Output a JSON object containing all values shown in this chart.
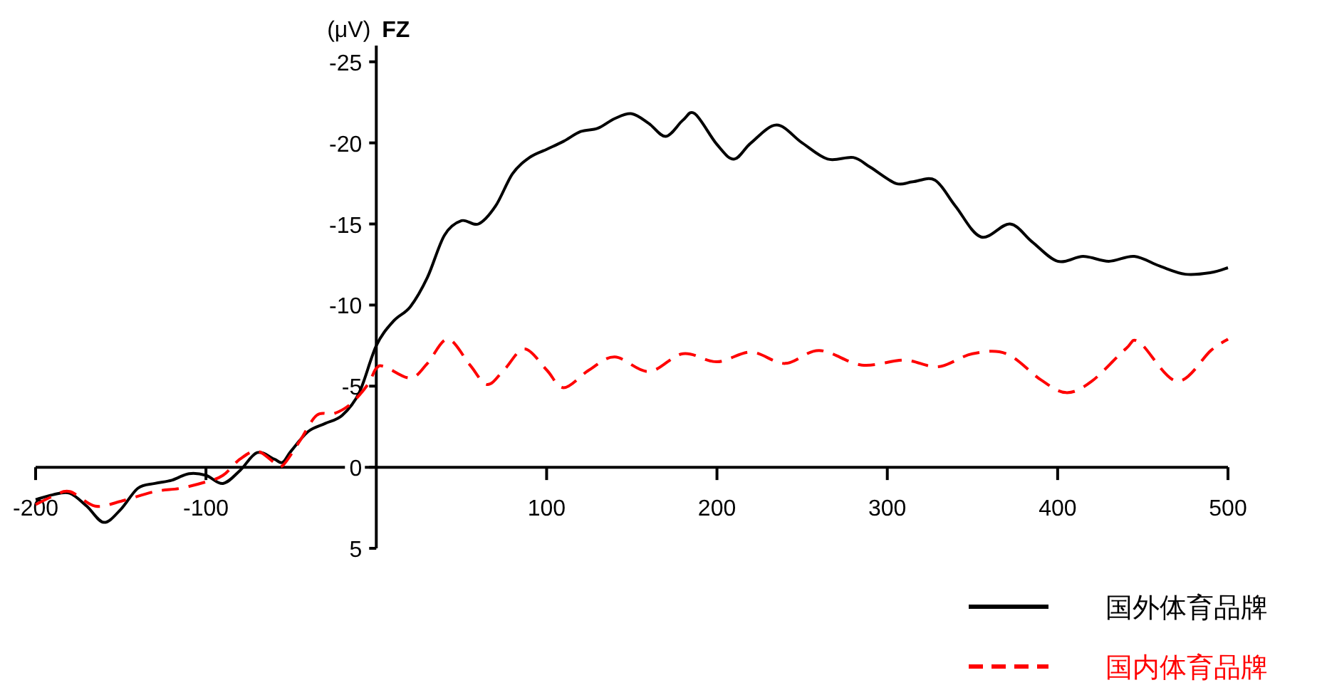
{
  "chart_data": {
    "type": "line",
    "title": "FZ",
    "ylabel": "(μV)",
    "xlim": [
      -200,
      500
    ],
    "ylim": [
      5,
      -26
    ],
    "xticks": [
      -200,
      -100,
      100,
      200,
      300,
      400,
      500
    ],
    "yticks": [
      -25,
      -20,
      -15,
      -10,
      -5,
      0,
      5
    ],
    "legend": "bottom right",
    "grid": false,
    "marker": "none",
    "series": [
      {
        "name": "国外体育品牌",
        "color": "#000000",
        "line_style": "solid",
        "x": [
          -200,
          -190,
          -180,
          -170,
          -160,
          -150,
          -140,
          -130,
          -120,
          -110,
          -100,
          -90,
          -80,
          -70,
          -60,
          -55,
          -50,
          -40,
          -30,
          -20,
          -10,
          0,
          10,
          20,
          30,
          40,
          50,
          60,
          70,
          80,
          90,
          100,
          110,
          120,
          130,
          140,
          150,
          160,
          170,
          180,
          187,
          200,
          210,
          220,
          235,
          250,
          265,
          280,
          290,
          305,
          315,
          328,
          340,
          355,
          372,
          385,
          400,
          415,
          430,
          445,
          460,
          475,
          490,
          500
        ],
        "values": [
          2.0,
          1.7,
          1.6,
          2.4,
          3.4,
          2.6,
          1.3,
          1.0,
          0.8,
          0.4,
          0.5,
          1.0,
          0.2,
          -0.9,
          -0.5,
          -0.3,
          -1.0,
          -2.2,
          -2.7,
          -3.2,
          -4.6,
          -7.5,
          -9.0,
          -9.9,
          -11.7,
          -14.3,
          -15.2,
          -15.0,
          -16.1,
          -18.1,
          -19.1,
          -19.6,
          -20.1,
          -20.7,
          -20.9,
          -21.5,
          -21.8,
          -21.2,
          -20.4,
          -21.4,
          -21.8,
          -19.9,
          -19.0,
          -20.0,
          -21.1,
          -20.0,
          -19.0,
          -19.1,
          -18.5,
          -17.5,
          -17.6,
          -17.7,
          -16.1,
          -14.2,
          -15.0,
          -13.9,
          -12.7,
          -13.0,
          -12.7,
          -13.0,
          -12.4,
          -11.9,
          -12.0,
          -12.3
        ]
      },
      {
        "name": "国内体育品牌",
        "color": "#ff0000",
        "line_style": "dashed",
        "x": [
          -200,
          -190,
          -180,
          -165,
          -150,
          -130,
          -115,
          -100,
          -90,
          -80,
          -70,
          -60,
          -55,
          -45,
          -35,
          -25,
          -15,
          -5,
          0,
          5,
          20,
          30,
          42,
          55,
          65,
          75,
          87,
          100,
          110,
          125,
          140,
          160,
          180,
          200,
          220,
          240,
          260,
          285,
          310,
          330,
          350,
          370,
          390,
          405,
          420,
          440,
          448,
          470,
          490,
          500
        ],
        "values": [
          2.3,
          1.8,
          1.5,
          2.4,
          2.1,
          1.5,
          1.3,
          0.9,
          0.5,
          -0.5,
          -1.0,
          -0.3,
          -0.1,
          -1.6,
          -3.2,
          -3.3,
          -3.9,
          -5.1,
          -6.1,
          -6.2,
          -5.5,
          -6.4,
          -7.9,
          -6.3,
          -5.1,
          -6.0,
          -7.3,
          -6.0,
          -4.9,
          -6.0,
          -6.8,
          -5.9,
          -7.0,
          -6.5,
          -7.1,
          -6.4,
          -7.2,
          -6.3,
          -6.6,
          -6.2,
          -7.0,
          -7.0,
          -5.4,
          -4.6,
          -5.3,
          -7.3,
          -7.7,
          -5.3,
          -7.2,
          -7.9
        ]
      }
    ]
  }
}
